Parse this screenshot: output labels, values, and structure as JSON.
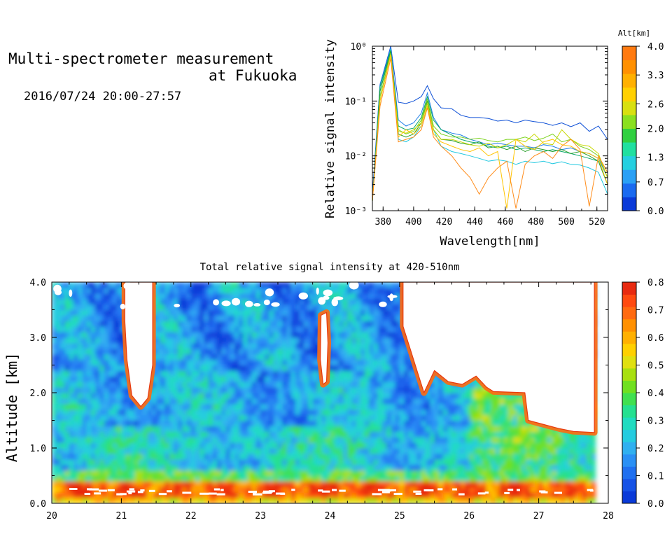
{
  "header": {
    "title_line1": "Multi-spectrometer measurement",
    "title_line2": "at Fukuoka",
    "datetime": "2016/07/24 20:00-27:57"
  },
  "chart_data": [
    {
      "type": "line",
      "xlabel": "Wavelength[nm]",
      "ylabel": "Relative signal intensity",
      "yscale": "log",
      "xlim": [
        373,
        527
      ],
      "ylim": [
        0.001,
        1
      ],
      "xticks": [
        "380",
        "400",
        "420",
        "440",
        "460",
        "480",
        "500",
        "520"
      ],
      "yticks": [
        "10⁻³",
        "10⁻²",
        "10⁻¹",
        "10⁰"
      ],
      "x": [
        373,
        378,
        385,
        390,
        395,
        400,
        405,
        409,
        413,
        418,
        425,
        431,
        437,
        443,
        449,
        455,
        461,
        467,
        473,
        479,
        485,
        491,
        497,
        503,
        509,
        515,
        521,
        527
      ],
      "series": [
        {
          "color": "#0d4fd6",
          "values": [
            0.002,
            0.2,
            1.0,
            0.095,
            0.09,
            0.1,
            0.12,
            0.19,
            0.11,
            0.075,
            0.072,
            0.055,
            0.05,
            0.05,
            0.048,
            0.043,
            0.045,
            0.04,
            0.045,
            0.042,
            0.04,
            0.036,
            0.04,
            0.034,
            0.04,
            0.028,
            0.035,
            0.02
          ]
        },
        {
          "color": "#1e7fe8",
          "values": [
            0.0015,
            0.2,
            0.9,
            0.045,
            0.035,
            0.04,
            0.06,
            0.14,
            0.05,
            0.03,
            0.026,
            0.024,
            0.02,
            0.018,
            0.016,
            0.017,
            0.016,
            0.015,
            0.015,
            0.014,
            0.016,
            0.015,
            0.013,
            0.014,
            0.012,
            0.011,
            0.009,
            0.004
          ]
        },
        {
          "color": "#20c8e0",
          "values": [
            0.0015,
            0.15,
            0.9,
            0.02,
            0.018,
            0.022,
            0.035,
            0.08,
            0.03,
            0.015,
            0.012,
            0.011,
            0.01,
            0.009,
            0.008,
            0.0085,
            0.008,
            0.007,
            0.008,
            0.0075,
            0.008,
            0.0072,
            0.0078,
            0.007,
            0.0068,
            0.006,
            0.005,
            0.002
          ]
        },
        {
          "color": "#0aa86a",
          "values": [
            0.0015,
            0.18,
            0.85,
            0.035,
            0.03,
            0.032,
            0.05,
            0.12,
            0.045,
            0.03,
            0.024,
            0.02,
            0.018,
            0.017,
            0.015,
            0.014,
            0.015,
            0.013,
            0.014,
            0.013,
            0.012,
            0.013,
            0.012,
            0.011,
            0.01,
            0.009,
            0.008,
            0.003
          ]
        },
        {
          "color": "#2aa02a",
          "values": [
            0.0015,
            0.15,
            0.8,
            0.025,
            0.022,
            0.025,
            0.04,
            0.1,
            0.03,
            0.02,
            0.019,
            0.017,
            0.016,
            0.018,
            0.014,
            0.015,
            0.013,
            0.015,
            0.012,
            0.014,
            0.013,
            0.012,
            0.013,
            0.011,
            0.012,
            0.01,
            0.008,
            0.003
          ]
        },
        {
          "color": "#7ed321",
          "values": [
            0.0015,
            0.12,
            0.75,
            0.03,
            0.025,
            0.028,
            0.045,
            0.11,
            0.035,
            0.025,
            0.022,
            0.022,
            0.02,
            0.021,
            0.019,
            0.018,
            0.02,
            0.02,
            0.022,
            0.019,
            0.021,
            0.025,
            0.018,
            0.02,
            0.015,
            0.013,
            0.01,
            0.004
          ]
        },
        {
          "color": "#c8d800",
          "values": [
            0.0015,
            0.1,
            0.7,
            0.028,
            0.026,
            0.03,
            0.04,
            0.09,
            0.03,
            0.02,
            0.02,
            0.018,
            0.016,
            0.015,
            0.017,
            0.014,
            0.016,
            0.02,
            0.018,
            0.025,
            0.017,
            0.016,
            0.03,
            0.02,
            0.016,
            0.015,
            0.011,
            0.004
          ]
        },
        {
          "color": "#ffc400",
          "values": [
            0.0015,
            0.1,
            0.7,
            0.022,
            0.03,
            0.025,
            0.035,
            0.08,
            0.025,
            0.018,
            0.015,
            0.013,
            0.012,
            0.014,
            0.01,
            0.012,
            0.0011,
            0.02,
            0.015,
            0.013,
            0.018,
            0.02,
            0.016,
            0.015,
            0.012,
            0.011,
            0.009,
            0.003
          ]
        },
        {
          "color": "#ff8c1a",
          "values": [
            0.0015,
            0.08,
            0.6,
            0.018,
            0.02,
            0.022,
            0.03,
            0.075,
            0.022,
            0.015,
            0.01,
            0.006,
            0.004,
            0.002,
            0.004,
            0.006,
            0.008,
            0.0011,
            0.007,
            0.01,
            0.012,
            0.009,
            0.015,
            0.02,
            0.013,
            0.0012,
            0.01,
            0.005
          ]
        }
      ],
      "colorbar": {
        "label": "Alt[km]",
        "ticks": [
          "0.0",
          "0.7",
          "1.3",
          "2.0",
          "2.6",
          "3.3",
          "4.0"
        ],
        "colors": [
          "#0a3ad8",
          "#1a6af0",
          "#2aa0f5",
          "#25d0e0",
          "#20e0a0",
          "#30d040",
          "#8ae020",
          "#d8e010",
          "#ffd000",
          "#ffb000",
          "#ff9000",
          "#ff7a10"
        ]
      }
    },
    {
      "type": "heatmap",
      "title": "Total relative signal intensity at 420-510nm",
      "xlabel": "",
      "ylabel": "Altitude [km]",
      "xlim": [
        20,
        28
      ],
      "ylim": [
        0,
        4
      ],
      "xticks": [
        "20",
        "21",
        "22",
        "23",
        "24",
        "25",
        "26",
        "27",
        "28"
      ],
      "yticks": [
        "0.0",
        "1.0",
        "2.0",
        "3.0",
        "4.0"
      ],
      "data_range_x": [
        20,
        27.8
      ],
      "colorbar": {
        "range": [
          0,
          0.8
        ],
        "ticks": [
          "0.0",
          "0.1",
          "0.2",
          "0.3",
          "0.4",
          "0.5",
          "0.6",
          "0.7",
          "0.8"
        ],
        "colors": [
          "#0a3ad8",
          "#1652e6",
          "#2070f0",
          "#2a90f5",
          "#30b0f0",
          "#25cce0",
          "#20dcc0",
          "#25e090",
          "#40e050",
          "#70e020",
          "#a8e010",
          "#e0e010",
          "#ffd000",
          "#ffb000",
          "#ff9000",
          "#ff6a10",
          "#ff4a10",
          "#e82a10"
        ]
      },
      "features": [
        {
          "name": "low-altitude bright band",
          "alt_km": [
            0.1,
            0.45
          ],
          "value": 0.75
        },
        {
          "name": "cloud gap",
          "time": [
            21.0,
            21.45
          ],
          "alt_km": [
            1.7,
            4.0
          ]
        },
        {
          "name": "cloud gap",
          "time": [
            23.85,
            24.0
          ],
          "alt_km": [
            2.1,
            3.5
          ]
        },
        {
          "name": "no-signal region",
          "time": [
            25.05,
            27.8
          ],
          "alt_km": [
            1.25,
            4.0
          ]
        }
      ]
    }
  ]
}
